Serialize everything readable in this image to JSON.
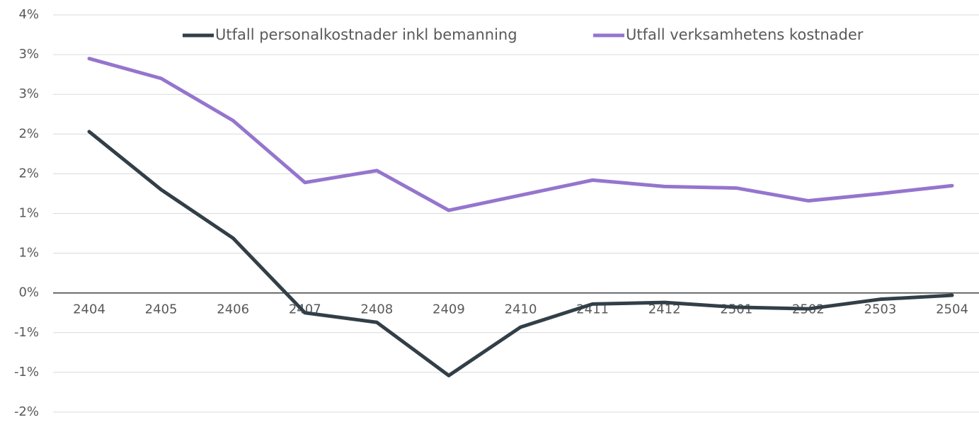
{
  "chart_data": {
    "type": "line",
    "categories": [
      "2404",
      "2405",
      "2406",
      "2407",
      "2408",
      "2409",
      "2410",
      "2411",
      "2412",
      "2501",
      "2502",
      "2503",
      "2504"
    ],
    "series": [
      {
        "name": "Utfall personalkostnader inkl bemanning",
        "color": "#323f48",
        "values": [
          2.03,
          1.3,
          0.69,
          -0.25,
          -0.37,
          -1.04,
          -0.43,
          -0.14,
          -0.12,
          -0.18,
          -0.2,
          -0.08,
          -0.03
        ]
      },
      {
        "name": "Utfall verksamhetens kostnader",
        "color": "#9575cd",
        "values": [
          2.95,
          2.7,
          2.17,
          1.39,
          1.54,
          1.04,
          1.23,
          1.42,
          1.34,
          1.32,
          1.16,
          1.25,
          1.35
        ]
      }
    ],
    "ylim": [
      -1.5,
      3.5
    ],
    "yticks": [
      {
        "value": -1.5,
        "label": "-2%"
      },
      {
        "value": -1,
        "label": "-1%"
      },
      {
        "value": -0.5,
        "label": "-1%"
      },
      {
        "value": 0,
        "label": "0%"
      },
      {
        "value": 0.5,
        "label": "1%"
      },
      {
        "value": 1,
        "label": "1%"
      },
      {
        "value": 1.5,
        "label": "2%"
      },
      {
        "value": 2,
        "label": "2%"
      },
      {
        "value": 2.5,
        "label": "3%"
      },
      {
        "value": 3,
        "label": "3%"
      },
      {
        "value": 3.5,
        "label": "4%"
      }
    ],
    "grid": true,
    "legend": "top"
  }
}
